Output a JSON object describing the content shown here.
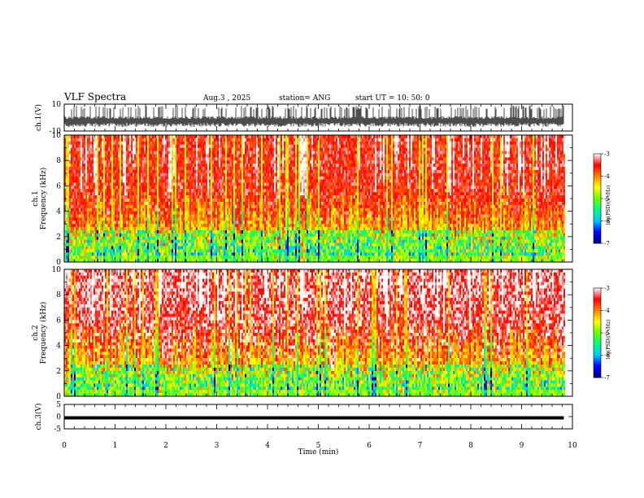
{
  "header": {
    "title": "VLF Spectra",
    "date": "Aug.3 , 2025",
    "station": "station= ANG",
    "start_ut": "start UT = 10: 50: 0"
  },
  "chart_data": [
    {
      "type": "line",
      "panel": "ch1-waveform",
      "ylabel": "ch.1(V)",
      "ylim": [
        -10,
        10
      ],
      "yticks": [
        "10",
        "-10"
      ],
      "x_range_min": [
        0,
        9.83
      ],
      "baseline": -3,
      "noise_band": [
        -6,
        6
      ]
    },
    {
      "type": "heatmap",
      "panel": "ch1-spectrogram",
      "ylabel_line1": "ch.1",
      "ylabel_line2": "Frequency (kHz)",
      "ylim": [
        0,
        10
      ],
      "yticks": [
        "0",
        "2",
        "4",
        "6",
        "8",
        "10"
      ],
      "colorbar": {
        "label": "log(PSD)(V²/Hz)",
        "range": [
          -7,
          -3
        ],
        "ticks": [
          "-3",
          "-4",
          "-5",
          "-6",
          "-7"
        ]
      }
    },
    {
      "type": "heatmap",
      "panel": "ch2-spectrogram",
      "ylabel_line1": "ch.2",
      "ylabel_line2": "Frequency (kHz)",
      "ylim": [
        0,
        10
      ],
      "yticks": [
        "0",
        "2",
        "4",
        "6",
        "8",
        "10"
      ],
      "colorbar": {
        "label": "log(PSD)(V²/Hz)",
        "range": [
          -7,
          -3
        ],
        "ticks": [
          "-3",
          "-4",
          "-5",
          "-6",
          "-7"
        ]
      }
    },
    {
      "type": "line",
      "panel": "ch3-waveform",
      "ylabel": "ch.3(V)",
      "ylim": [
        -5,
        5
      ],
      "yticks": [
        "5",
        "0",
        "-5"
      ],
      "constant_value": -0.5,
      "x_range_min": [
        0,
        9.83
      ]
    }
  ],
  "x_axis": {
    "label": "Time (min)",
    "xlim": [
      0,
      10
    ],
    "ticks": [
      "0",
      "1",
      "2",
      "3",
      "4",
      "5",
      "6",
      "7",
      "8",
      "9",
      "10"
    ]
  },
  "colors": {
    "colormap": [
      "#000080",
      "#0000ff",
      "#00c8ff",
      "#00ff80",
      "#66ff00",
      "#ffff00",
      "#ff8000",
      "#ff0000",
      "#ffffff"
    ]
  }
}
